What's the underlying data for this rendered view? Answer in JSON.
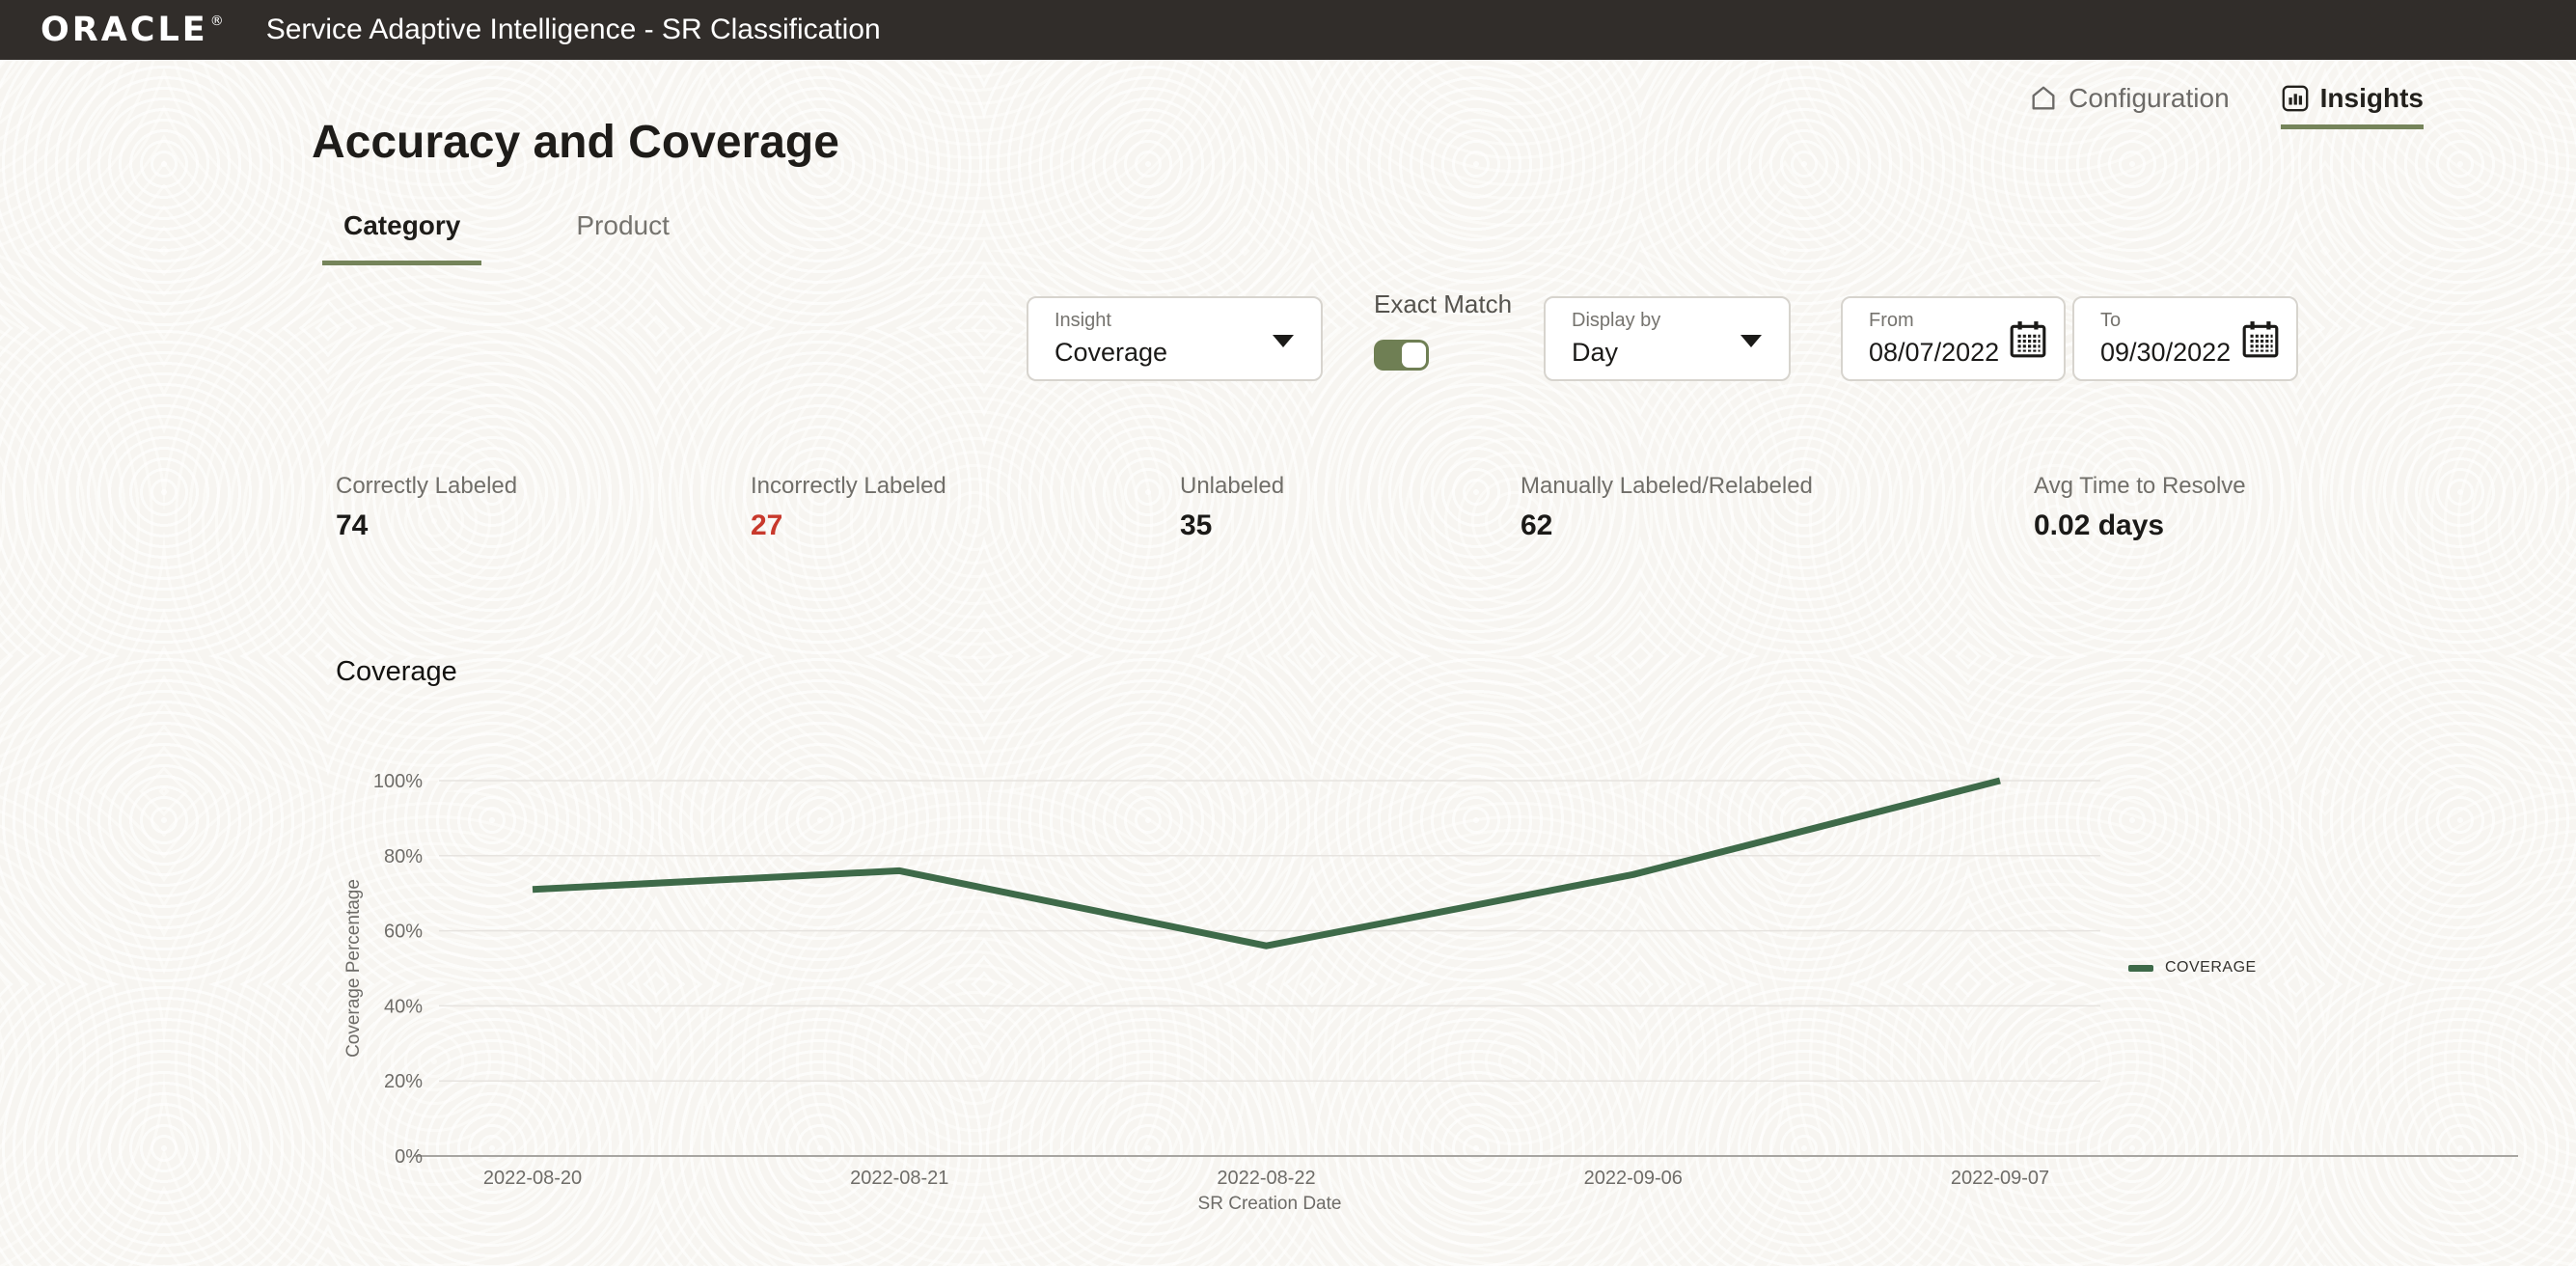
{
  "header": {
    "brand": "ORACLE",
    "registered": "®",
    "app_title": "Service Adaptive Intelligence - SR Classification"
  },
  "nav": {
    "configuration": "Configuration",
    "insights": "Insights"
  },
  "page": {
    "title": "Accuracy and Coverage"
  },
  "tabs": [
    {
      "label": "Category",
      "active": true
    },
    {
      "label": "Product",
      "active": false
    }
  ],
  "filters": {
    "insight": {
      "label": "Insight",
      "value": "Coverage"
    },
    "exact_match": {
      "label": "Exact Match",
      "on": true
    },
    "display_by": {
      "label": "Display by",
      "value": "Day"
    },
    "from": {
      "label": "From",
      "value": "08/07/2022"
    },
    "to": {
      "label": "To",
      "value": "09/30/2022"
    }
  },
  "stats": [
    {
      "label": "Correctly Labeled",
      "value": "74",
      "value_color": "#1B1A18"
    },
    {
      "label": "Incorrectly Labeled",
      "value": "27",
      "value_color": "#C8392C"
    },
    {
      "label": "Unlabeled",
      "value": "35",
      "value_color": "#1B1A18"
    },
    {
      "label": "Manually Labeled/Relabeled",
      "value": "62",
      "value_color": "#1B1A18"
    },
    {
      "label": "Avg Time to Resolve",
      "value": "0.02 days",
      "value_color": "#1B1A18"
    }
  ],
  "chart_data": {
    "type": "line",
    "title": "Coverage",
    "categories": [
      "2022-08-20",
      "2022-08-21",
      "2022-08-22",
      "2022-09-06",
      "2022-09-07"
    ],
    "series": [
      {
        "name": "COVERAGE",
        "values": [
          71,
          76,
          56,
          75,
          100
        ]
      }
    ],
    "xlabel": "SR Creation Date",
    "ylabel": "Coverage Percentage",
    "ylim": [
      0,
      100
    ],
    "yticks": [
      0,
      20,
      40,
      60,
      80,
      100
    ],
    "ytick_suffix": "%",
    "grid": true,
    "legend_position": "right",
    "line_color": "#3E6A49"
  },
  "icons": {
    "nav_configuration": "home-icon",
    "nav_insights": "bar-chart-icon",
    "dropdowns": "caret-down-icon",
    "date_fields": "calendar-icon",
    "legend": "line-dash-icon"
  },
  "colors": {
    "header_bg": "#312D2A",
    "accent_olive": "#75845A",
    "toggle_on": "#6F7F54",
    "line_green": "#3E6A49",
    "negative_red": "#C8392C"
  }
}
